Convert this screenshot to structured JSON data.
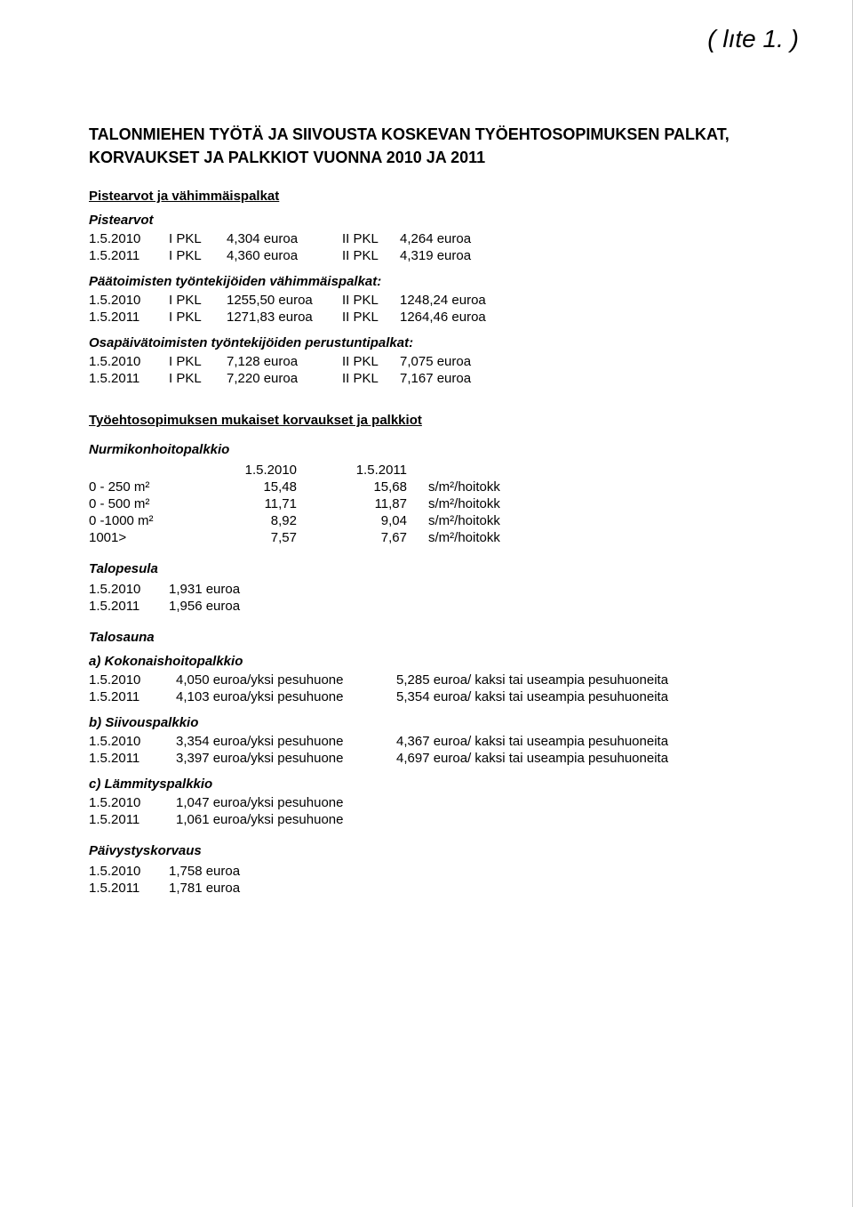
{
  "handnote": "( lıte 1. )",
  "title_line1": "TALONMIEHEN TYÖTÄ JA SIIVOUSTA KOSKEVAN TYÖEHTOSOPIMUKSEN PALKAT,",
  "title_line2": "KORVAUKSET JA PALKKIOT VUONNA 2010 JA 2011",
  "section1": "Pistearvot ja vähimmäispalkat",
  "pistearvot": {
    "heading": "Pistearvot",
    "rows": [
      {
        "date": "1.5.2010",
        "c1": "I PKL",
        "v1": "4,304 euroa",
        "c2": "II PKL",
        "v2": "4,264 euroa"
      },
      {
        "date": "1.5.2011",
        "c1": "I PKL",
        "v1": "4,360 euroa",
        "c2": "II PKL",
        "v2": "4,319 euroa"
      }
    ]
  },
  "paatoim": {
    "heading": "Päätoimisten työntekijöiden vähimmäispalkat:",
    "rows": [
      {
        "date": "1.5.2010",
        "c1": "I PKL",
        "v1": "1255,50 euroa",
        "c2": "II PKL",
        "v2": "1248,24 euroa"
      },
      {
        "date": "1.5.2011",
        "c1": "I PKL",
        "v1": "1271,83 euroa",
        "c2": "II PKL",
        "v2": "1264,46 euroa"
      }
    ]
  },
  "osapaiv": {
    "heading": "Osapäivätoimisten työntekijöiden perustuntipalkat:",
    "rows": [
      {
        "date": "1.5.2010",
        "c1": "I PKL",
        "v1": "7,128 euroa",
        "c2": "II PKL",
        "v2": "7,075 euroa"
      },
      {
        "date": "1.5.2011",
        "c1": "I PKL",
        "v1": "7,220 euroa",
        "c2": "II PKL",
        "v2": "7,167 euroa"
      }
    ]
  },
  "section2": "Työehtosopimuksen mukaiset korvaukset ja palkkiot",
  "nurmi": {
    "heading": "Nurmikonhoitopalkkio",
    "col_y1": "1.5.2010",
    "col_y2": "1.5.2011",
    "unit": "s/m²/hoitokk",
    "rows": [
      {
        "range": "0 - 250 m²",
        "y1": "15,48",
        "y2": "15,68"
      },
      {
        "range": "0 - 500 m²",
        "y1": "11,71",
        "y2": "11,87"
      },
      {
        "range": "0 -1000 m²",
        "y1": "8,92",
        "y2": "9,04"
      },
      {
        "range": "1001>",
        "y1": "7,57",
        "y2": "7,67"
      }
    ]
  },
  "talopesula": {
    "heading": "Talopesula",
    "rows": [
      {
        "date": "1.5.2010",
        "val": "1,931 euroa"
      },
      {
        "date": "1.5.2011",
        "val": "1,956 euroa"
      }
    ]
  },
  "talosauna": {
    "heading": "Talosauna",
    "a": {
      "heading": "a) Kokonaishoitopalkkio",
      "rows": [
        {
          "date": "1.5.2010",
          "a": "4,050 euroa/yksi pesuhuone",
          "b": "5,285 euroa/ kaksi tai useampia pesuhuoneita"
        },
        {
          "date": "1.5.2011",
          "a": "4,103 euroa/yksi pesuhuone",
          "b": "5,354 euroa/ kaksi tai useampia pesuhuoneita"
        }
      ]
    },
    "b": {
      "heading": "b) Siivouspalkkio",
      "rows": [
        {
          "date": "1.5.2010",
          "a": "3,354 euroa/yksi pesuhuone",
          "b": "4,367 euroa/ kaksi tai useampia pesuhuoneita"
        },
        {
          "date": "1.5.2011",
          "a": "3,397 euroa/yksi pesuhuone",
          "b": "4,697 euroa/ kaksi tai useampia pesuhuoneita"
        }
      ]
    },
    "c": {
      "heading": "c) Lämmityspalkkio",
      "rows": [
        {
          "date": "1.5.2010",
          "a": "1,047 euroa/yksi pesuhuone"
        },
        {
          "date": "1.5.2011",
          "a": "1,061 euroa/yksi pesuhuone"
        }
      ]
    }
  },
  "paivystys": {
    "heading": "Päivystyskorvaus",
    "rows": [
      {
        "date": "1.5.2010",
        "val": "1,758 euroa"
      },
      {
        "date": "1.5.2011",
        "val": "1,781 euroa"
      }
    ]
  }
}
